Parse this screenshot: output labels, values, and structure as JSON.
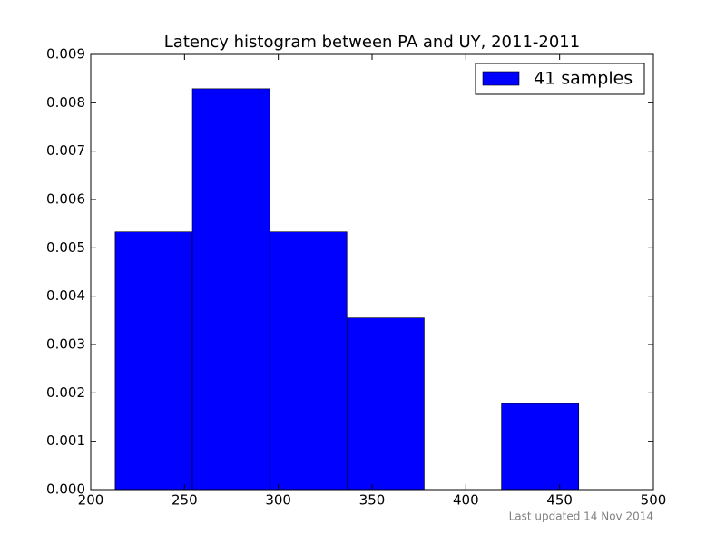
{
  "chart_data": {
    "type": "histogram",
    "title": "Latency histogram between PA and UY, 2011-2011",
    "bins": [
      213,
      254.2,
      295.4,
      336.6,
      377.8,
      419,
      460.2
    ],
    "series": [
      {
        "name": "41 samples",
        "color": "#0000ff",
        "values": [
          0.00533,
          0.00829,
          0.00533,
          0.00355,
          0,
          0.00178
        ]
      }
    ],
    "xlim": [
      200,
      500
    ],
    "xticks": [
      200,
      250,
      300,
      350,
      400,
      450,
      500
    ],
    "ylim": [
      0,
      0.009
    ],
    "yticks": [
      {
        "value": 0,
        "label": "0.000"
      },
      {
        "value": 0.001,
        "label": "0.001"
      },
      {
        "value": 0.002,
        "label": "0.002"
      },
      {
        "value": 0.003,
        "label": "0.003"
      },
      {
        "value": 0.004,
        "label": "0.004"
      },
      {
        "value": 0.005,
        "label": "0.005"
      },
      {
        "value": 0.006,
        "label": "0.006"
      },
      {
        "value": 0.007,
        "label": "0.007"
      },
      {
        "value": 0.008,
        "label": "0.008"
      },
      {
        "value": 0.009,
        "label": "0.009"
      }
    ],
    "legend": "upper right",
    "footnote": "Last updated 14 Nov 2014"
  }
}
